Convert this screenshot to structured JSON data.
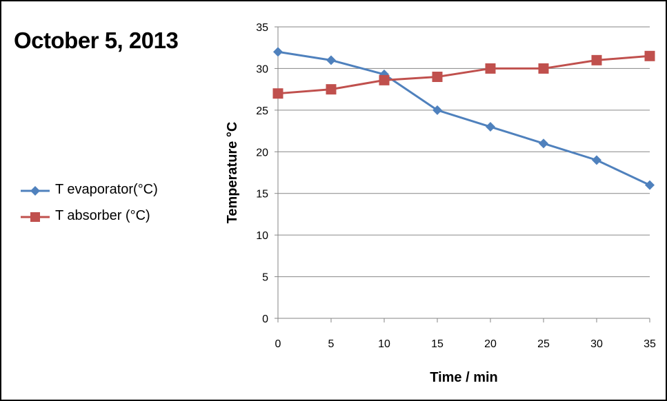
{
  "chart_data": {
    "type": "line",
    "title": "October 5, 2013",
    "xlabel": "Time / min",
    "ylabel": "Temperature °C",
    "x": [
      0,
      5,
      10,
      15,
      20,
      25,
      30,
      35
    ],
    "xlim": [
      0,
      35
    ],
    "ylim": [
      0,
      35
    ],
    "x_ticks": [
      "0",
      "5",
      "10",
      "15",
      "20",
      "25",
      "30",
      "35"
    ],
    "y_ticks": [
      "0",
      "5",
      "10",
      "15",
      "20",
      "25",
      "30",
      "35"
    ],
    "grid": "horizontal",
    "legend_position": "left",
    "series": [
      {
        "name": "T evaporator(°C)",
        "marker": "diamond",
        "color": "#4F81BD",
        "values": [
          32,
          31,
          29.3,
          25,
          23,
          21,
          19,
          16
        ]
      },
      {
        "name": "T absorber (°C)",
        "marker": "square",
        "color": "#C0504D",
        "values": [
          27,
          27.5,
          28.6,
          29,
          30,
          30,
          31,
          31.5
        ]
      }
    ]
  }
}
